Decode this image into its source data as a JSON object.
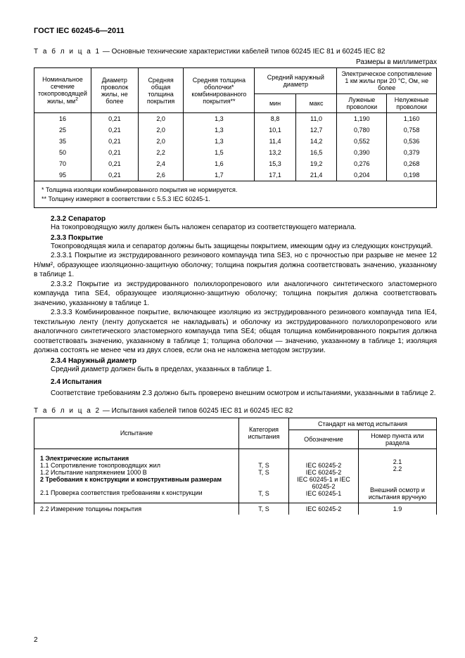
{
  "header": {
    "gost": "ГОСТ IEC 60245-6—2011"
  },
  "table1": {
    "caption_prefix": "Т а б л и ц а  1",
    "caption_rest": " — Основные технические характеристики кабелей типов 60245 IEC 81 и 60245 IEC 82",
    "units": "Размеры в миллиметрах",
    "head": {
      "c1": "Номинальное сечение токопроводящей жилы, мм",
      "c1_sup": "2",
      "c2": "Диаметр проволок жилы, не более",
      "c3": "Средняя общая толщина покрытия",
      "c4": "Средняя толщина оболочки* комбинированного покрытия**",
      "c5": "Средний наружный диаметр",
      "c5a": "мин",
      "c5b": "макс",
      "c6": "Электрическое сопротивление 1 км жилы при 20 °С, Ом, не более",
      "c6a": "Луженые проволоки",
      "c6b": "Нелуженые проволоки"
    },
    "rows": [
      [
        "16",
        "0,21",
        "2,0",
        "1,3",
        "8,8",
        "11,0",
        "1,190",
        "1,160"
      ],
      [
        "25",
        "0,21",
        "2,0",
        "1,3",
        "10,1",
        "12,7",
        "0,780",
        "0,758"
      ],
      [
        "35",
        "0,21",
        "2,0",
        "1,3",
        "11,4",
        "14,2",
        "0,552",
        "0,536"
      ],
      [
        "50",
        "0,21",
        "2,2",
        "1,5",
        "13,2",
        "16,5",
        "0,390",
        "0,379"
      ],
      [
        "70",
        "0,21",
        "2,4",
        "1,6",
        "15,3",
        "19,2",
        "0,276",
        "0,268"
      ],
      [
        "95",
        "0,21",
        "2,6",
        "1,7",
        "17,1",
        "21,4",
        "0,204",
        "0,198"
      ]
    ],
    "foot1": "*  Толщина изоляции комбинированного покрытия не нормируется.",
    "foot2": "**  Толщину измеряют в соответствии с 5.5.3 IEC 60245-1."
  },
  "body": {
    "s232_title": "2.3.2  Сепаратор",
    "s232_p": "На токопроводящую жилу должен быть наложен сепаратор из соответствующего материала.",
    "s233_title": "2.3.3  Покрытие",
    "s233_p0": "Токопроводящая жила и сепаратор должны быть защищены покрытием, имеющим одну из следующих конструкций.",
    "s2331": "2.3.3.1  Покрытие из экструдированного резинового компаунда типа SE3, но с прочностью при разрыве не менее 12 Н/мм², образующее изоляционно-защитную оболочку; толщина покрытия должна соответствовать значению, указанному в таблице 1.",
    "s2332": "2.3.3.2  Покрытие из экструдированного полихлоропренового или аналогичного синтетического эластомерного компаунда типа SE4, образующее изоляционно-защитную оболочку; толщина покрытия должна соответствовать значению, указанному в таблице 1.",
    "s2333": "2.3.3.3  Комбинированное покрытие, включающее изоляцию из экструдированного резинового компаунда типа IE4, текстильную ленту (ленту допускается не накладывать) и оболочку из экструдированного полихлоропренового или аналогичного синтетического эластомерного компаунда типа SE4; общая толщина комбинированного покрытия должна соответствовать значению, указанному в таблице 1; толщина оболочки — значению, указанному в таблице 1; изоляция должна состоять не менее чем из двух слоев, если она не наложена методом экструзии.",
    "s234_title": "2.3.4  Наружный диаметр",
    "s234_p": "Средний диаметр должен быть в пределах, указанных в таблице 1.",
    "s24_title": "2.4  Испытания",
    "s24_p": "Соответствие требованиям 2.3 должно быть проверено внешним осмотром и испытаниями, указанными в таблице 2."
  },
  "table2": {
    "caption_prefix": "Т а б л и ц а  2",
    "caption_rest": " — Испытания кабелей типов 60245 IEC 81 и 60245 IEC 82",
    "head": {
      "c1": "Испытание",
      "c2": "Категория испытания",
      "c3": "Стандарт на метод испытания",
      "c3a": "Обозначение",
      "c3b": "Номер пункта или раздела"
    },
    "r1": {
      "a": "1  Электрические испытания",
      "b": "1.1  Сопротивление токопроводящих жил",
      "c": "1.2  Испытание напряжением 1000 В",
      "d": "2  Требования к конструкции и конструктивным размерам",
      "e": "2.1  Проверка соответствия требованиям к конструкции",
      "cat_b": "T, S",
      "cat_c": "T, S",
      "cat_e": "T, S",
      "std_b": "IEC 60245-2",
      "std_c": "IEC 60245-2",
      "std_d": "IEC 60245-1 и IEC 60245-2",
      "std_e": "IEC 60245-1",
      "sec_b": "2.1",
      "sec_c": "2.2",
      "sec_e": "Внешний осмотр и испытания вручную"
    },
    "r2": {
      "a": "2.2  Измерение толщины покрытия",
      "cat": "T, S",
      "std": "IEC 60245-2",
      "sec": "1.9"
    }
  },
  "pagenum": "2"
}
